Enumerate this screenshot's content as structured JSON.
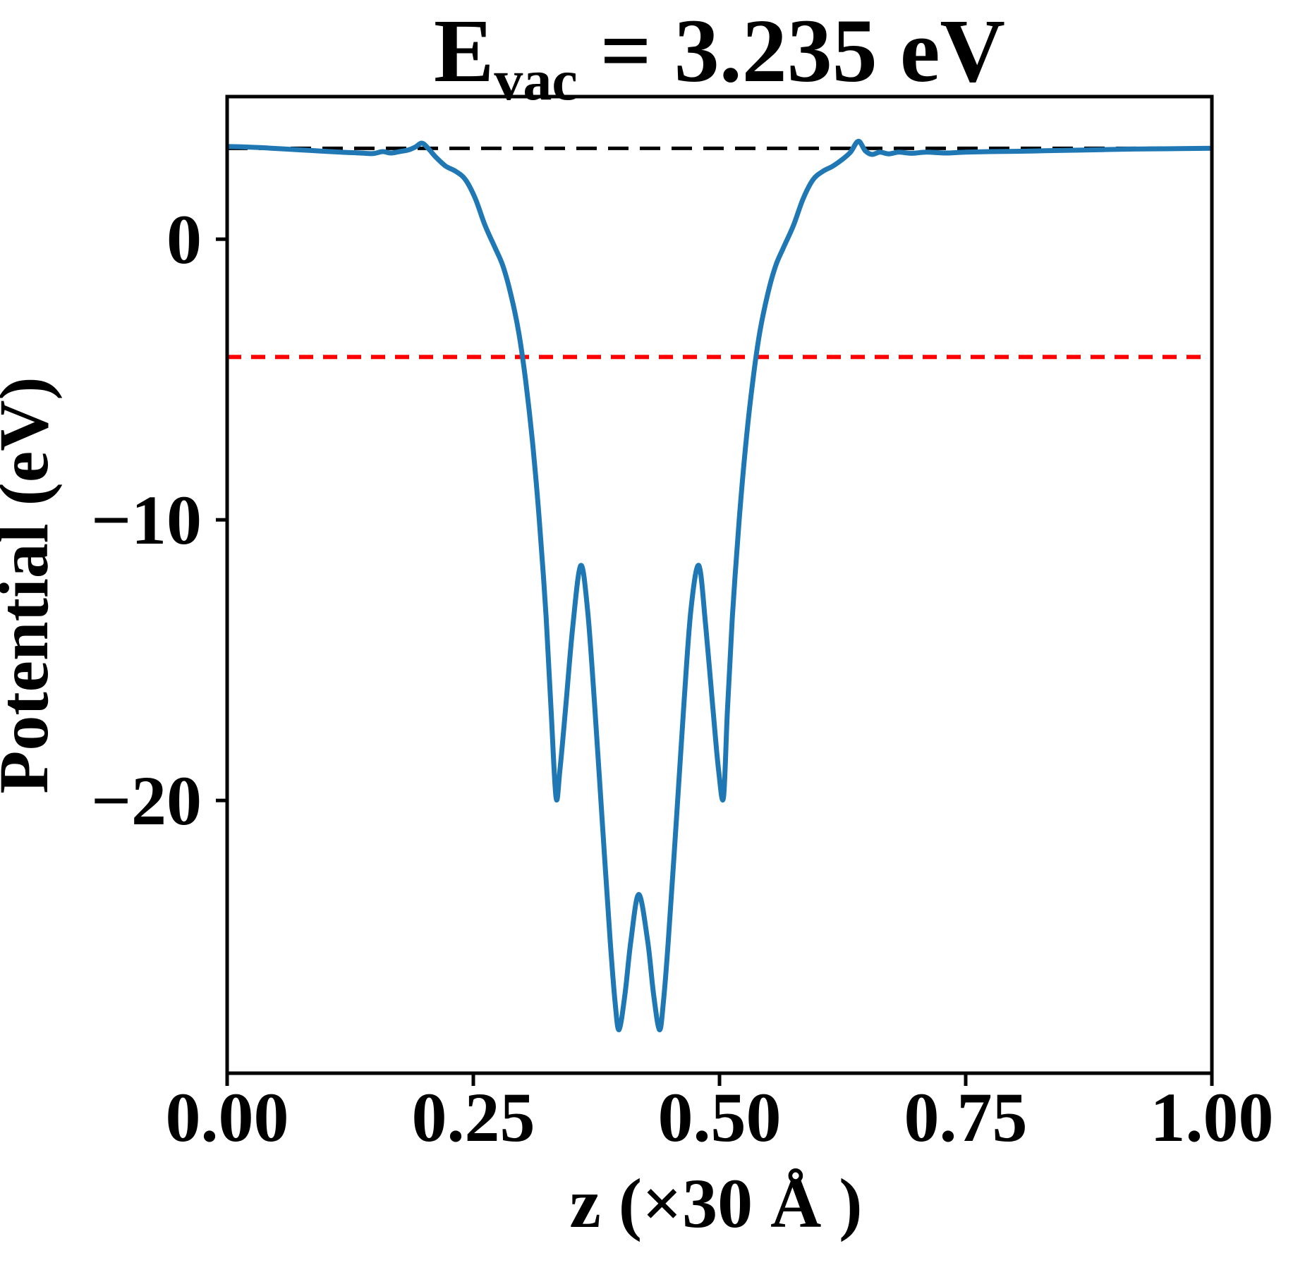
{
  "title": {
    "e": "E",
    "sub": "vac",
    "rest": " = 3.235 eV"
  },
  "chart_data": {
    "type": "line",
    "title": "E_vac = 3.235 eV",
    "evac_value_eV": 3.235,
    "xlabel": "z (×30 Å )",
    "ylabel": "Potential (eV)",
    "xlim": [
      0.0,
      1.0
    ],
    "ylim": [
      -29.72,
      5.08
    ],
    "xticks": [
      0.0,
      0.25,
      0.5,
      0.75,
      1.0
    ],
    "xtick_labels": [
      "0.00",
      "0.25",
      "0.50",
      "0.75",
      "1.00"
    ],
    "yticks": [
      0,
      -10,
      -20
    ],
    "ytick_labels": [
      "0",
      "−10",
      "−20"
    ],
    "grid": false,
    "legend": "none",
    "series": [
      {
        "name": "planar-averaged-potential",
        "color": "#1f77b4",
        "width": 7,
        "points": [
          [
            0.0,
            3.3
          ],
          [
            0.015,
            3.29
          ],
          [
            0.035,
            3.26
          ],
          [
            0.055,
            3.22
          ],
          [
            0.075,
            3.18
          ],
          [
            0.095,
            3.14
          ],
          [
            0.115,
            3.1
          ],
          [
            0.135,
            3.07
          ],
          [
            0.148,
            3.05
          ],
          [
            0.158,
            3.12
          ],
          [
            0.166,
            3.07
          ],
          [
            0.175,
            3.12
          ],
          [
            0.184,
            3.18
          ],
          [
            0.191,
            3.28
          ],
          [
            0.198,
            3.42
          ],
          [
            0.205,
            3.2
          ],
          [
            0.212,
            2.92
          ],
          [
            0.222,
            2.6
          ],
          [
            0.232,
            2.42
          ],
          [
            0.242,
            2.12
          ],
          [
            0.252,
            1.45
          ],
          [
            0.262,
            0.48
          ],
          [
            0.272,
            -0.3
          ],
          [
            0.28,
            -0.95
          ],
          [
            0.288,
            -1.95
          ],
          [
            0.296,
            -3.3
          ],
          [
            0.303,
            -5.0
          ],
          [
            0.31,
            -7.2
          ],
          [
            0.317,
            -10.0
          ],
          [
            0.324,
            -13.5
          ],
          [
            0.329,
            -16.8
          ],
          [
            0.334,
            -19.9
          ],
          [
            0.338,
            -18.9
          ],
          [
            0.344,
            -16.6
          ],
          [
            0.351,
            -13.8
          ],
          [
            0.359,
            -11.63
          ],
          [
            0.366,
            -13.2
          ],
          [
            0.373,
            -16.5
          ],
          [
            0.381,
            -20.8
          ],
          [
            0.389,
            -25.0
          ],
          [
            0.394,
            -27.2
          ],
          [
            0.398,
            -28.17
          ],
          [
            0.404,
            -26.9
          ],
          [
            0.41,
            -25.0
          ],
          [
            0.418,
            -23.35
          ],
          [
            0.427,
            -25.0
          ],
          [
            0.433,
            -26.9
          ],
          [
            0.439,
            -28.17
          ],
          [
            0.443,
            -27.2
          ],
          [
            0.448,
            -25.0
          ],
          [
            0.456,
            -20.8
          ],
          [
            0.464,
            -16.5
          ],
          [
            0.471,
            -13.2
          ],
          [
            0.479,
            -11.63
          ],
          [
            0.486,
            -13.8
          ],
          [
            0.493,
            -16.6
          ],
          [
            0.499,
            -18.9
          ],
          [
            0.504,
            -19.9
          ],
          [
            0.508,
            -16.8
          ],
          [
            0.513,
            -13.5
          ],
          [
            0.52,
            -10.0
          ],
          [
            0.527,
            -7.2
          ],
          [
            0.534,
            -5.0
          ],
          [
            0.541,
            -3.3
          ],
          [
            0.549,
            -1.95
          ],
          [
            0.557,
            -0.95
          ],
          [
            0.565,
            -0.3
          ],
          [
            0.575,
            0.48
          ],
          [
            0.585,
            1.45
          ],
          [
            0.595,
            2.12
          ],
          [
            0.605,
            2.42
          ],
          [
            0.615,
            2.6
          ],
          [
            0.625,
            2.85
          ],
          [
            0.633,
            3.1
          ],
          [
            0.641,
            3.49
          ],
          [
            0.648,
            3.15
          ],
          [
            0.655,
            3.02
          ],
          [
            0.663,
            3.1
          ],
          [
            0.672,
            3.04
          ],
          [
            0.682,
            3.1
          ],
          [
            0.695,
            3.06
          ],
          [
            0.71,
            3.1
          ],
          [
            0.73,
            3.07
          ],
          [
            0.75,
            3.1
          ],
          [
            0.775,
            3.12
          ],
          [
            0.8,
            3.13
          ],
          [
            0.83,
            3.15
          ],
          [
            0.86,
            3.17
          ],
          [
            0.89,
            3.19
          ],
          [
            0.92,
            3.21
          ],
          [
            0.95,
            3.22
          ],
          [
            0.975,
            3.23
          ],
          [
            1.0,
            3.24
          ]
        ]
      }
    ],
    "reference_lines": [
      {
        "name": "vacuum-level-line",
        "y": 3.235,
        "color": "#000000",
        "dash": [
          29,
          16
        ],
        "width": 5
      },
      {
        "name": "fermi-level-line",
        "y": -4.2,
        "color": "#ff0000",
        "dash": [
          20,
          14
        ],
        "width": 6
      }
    ]
  },
  "colors": {
    "curve": "#1f77b4",
    "vacuum_dash": "#000000",
    "fermi_dash": "#ff0000",
    "axes": "#000000",
    "background": "#ffffff"
  }
}
